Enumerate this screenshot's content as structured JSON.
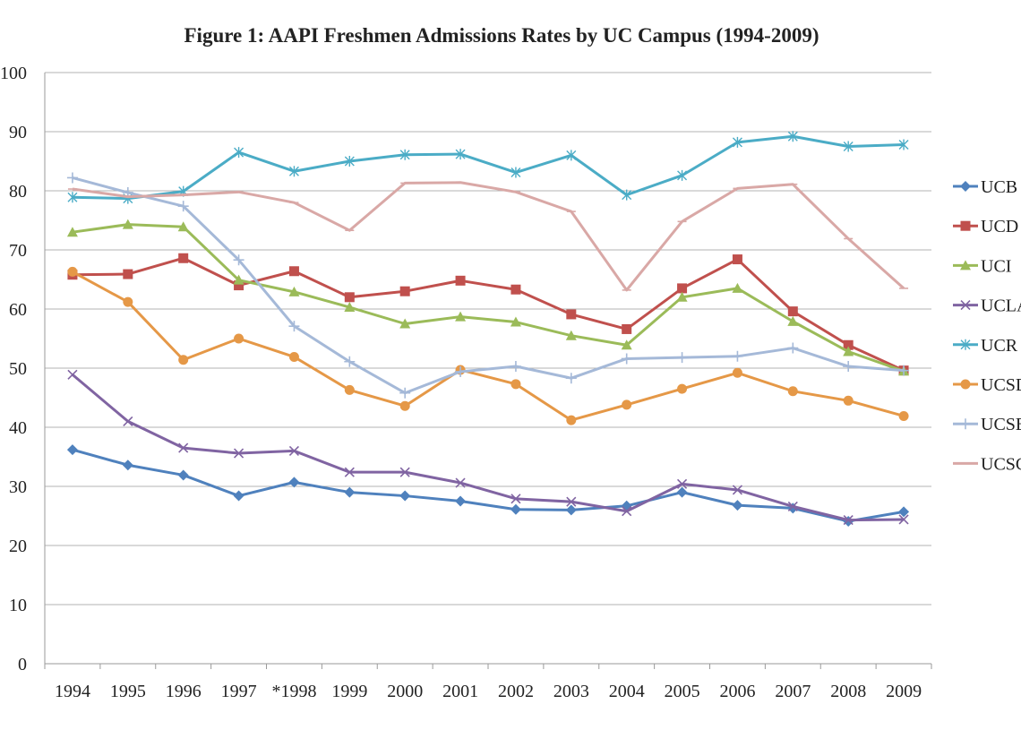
{
  "chart_data": {
    "type": "line",
    "title": "Figure 1: AAPI Freshmen Admissions Rates by UC Campus (1994-2009)",
    "xlabel": "",
    "ylabel": "",
    "ylim": [
      0,
      100
    ],
    "yticks": [
      0,
      10,
      20,
      30,
      40,
      50,
      60,
      70,
      80,
      90,
      100
    ],
    "grid": true,
    "legend_position": "right",
    "categories": [
      "1994",
      "1995",
      "1996",
      "1997",
      "*1998",
      "1999",
      "2000",
      "2001",
      "2002",
      "2003",
      "2004",
      "2005",
      "2006",
      "2007",
      "2008",
      "2009"
    ],
    "series": [
      {
        "name": "UCB",
        "color": "#4f81bd",
        "marker": "diamond",
        "values": [
          36.2,
          33.6,
          31.9,
          28.4,
          30.7,
          29.0,
          28.4,
          27.5,
          26.1,
          26.0,
          26.7,
          29.0,
          26.8,
          26.3,
          24.1,
          25.7
        ]
      },
      {
        "name": "UCD",
        "color": "#c0504d",
        "marker": "square",
        "values": [
          65.8,
          65.9,
          68.6,
          64.0,
          66.4,
          62.0,
          63.0,
          64.8,
          63.3,
          59.1,
          56.6,
          63.5,
          68.4,
          59.6,
          53.9,
          49.6
        ]
      },
      {
        "name": "UCI",
        "color": "#9bbb59",
        "marker": "triangle",
        "values": [
          73.0,
          74.3,
          73.9,
          64.9,
          62.9,
          60.3,
          57.5,
          58.7,
          57.8,
          55.5,
          53.9,
          62.0,
          63.5,
          57.9,
          52.8,
          49.5
        ]
      },
      {
        "name": "UCLA",
        "color": "#8064a2",
        "marker": "x",
        "values": [
          48.9,
          41.0,
          36.5,
          35.6,
          36.0,
          32.4,
          32.4,
          30.6,
          27.9,
          27.4,
          25.8,
          30.4,
          29.4,
          26.6,
          24.3,
          24.4
        ]
      },
      {
        "name": "UCR",
        "color": "#4bacc6",
        "marker": "star",
        "values": [
          78.9,
          78.7,
          79.9,
          86.5,
          83.3,
          85.0,
          86.1,
          86.2,
          83.1,
          86.0,
          79.3,
          82.6,
          88.2,
          89.2,
          87.5,
          87.8
        ]
      },
      {
        "name": "UCSD",
        "color": "#e59847",
        "marker": "circle",
        "values": [
          66.3,
          61.2,
          51.4,
          55.0,
          51.9,
          46.3,
          43.6,
          49.7,
          47.3,
          41.2,
          43.8,
          46.5,
          49.2,
          46.1,
          44.5,
          41.9
        ]
      },
      {
        "name": "UCSB",
        "color": "#a5b9d8",
        "marker": "plus",
        "values": [
          82.2,
          79.7,
          77.4,
          68.3,
          57.1,
          51.1,
          45.8,
          49.4,
          50.3,
          48.3,
          51.6,
          51.8,
          52.0,
          53.4,
          50.3,
          49.6
        ]
      },
      {
        "name": "UCSC",
        "color": "#d9a8a6",
        "marker": "dash",
        "values": [
          80.3,
          79.0,
          79.3,
          79.8,
          78.0,
          73.3,
          81.3,
          81.4,
          79.8,
          76.5,
          63.2,
          74.8,
          80.4,
          81.1,
          71.9,
          63.5
        ]
      }
    ]
  }
}
